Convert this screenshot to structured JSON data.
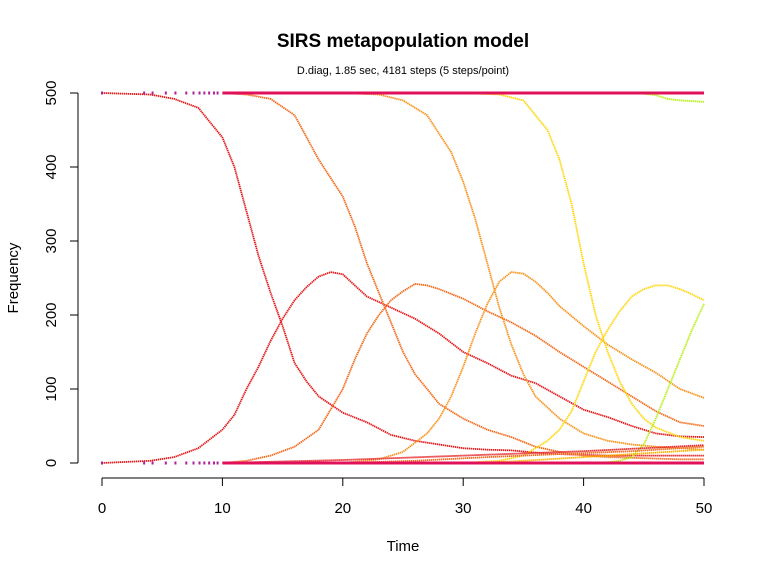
{
  "chart_data": {
    "type": "line",
    "title": "SIRS metapopulation model",
    "subtitle": "D.diag, 1.85 sec, 4181 steps (5 steps/point)",
    "xlabel": "Time",
    "ylabel": "Frequency",
    "xlim": [
      0,
      50
    ],
    "ylim": [
      0,
      500
    ],
    "x_ticks": [
      "0",
      "10",
      "20",
      "30",
      "40",
      "50"
    ],
    "y_ticks": [
      "0",
      "100",
      "200",
      "300",
      "400",
      "500"
    ],
    "grid": false,
    "legend": "none",
    "series": [
      {
        "role": "S",
        "color": "#e31a1c",
        "points": [
          [
            0,
            500
          ],
          [
            4,
            498
          ],
          [
            6,
            492
          ],
          [
            8,
            480
          ],
          [
            10,
            440
          ],
          [
            11,
            400
          ],
          [
            12,
            340
          ],
          [
            13,
            280
          ],
          [
            14,
            230
          ],
          [
            15,
            185
          ],
          [
            16,
            135
          ],
          [
            17,
            110
          ],
          [
            18,
            90
          ],
          [
            20,
            68
          ],
          [
            22,
            55
          ],
          [
            24,
            38
          ],
          [
            26,
            30
          ],
          [
            28,
            25
          ],
          [
            30,
            20
          ],
          [
            32,
            18
          ],
          [
            34,
            17
          ],
          [
            36,
            14
          ],
          [
            38,
            12
          ],
          [
            40,
            11
          ],
          [
            42,
            10
          ],
          [
            44,
            10
          ],
          [
            46,
            10
          ],
          [
            48,
            10
          ],
          [
            50,
            10
          ]
        ]
      },
      {
        "role": "I",
        "color": "#e31a1c",
        "points": [
          [
            0,
            0
          ],
          [
            4,
            3
          ],
          [
            6,
            8
          ],
          [
            8,
            20
          ],
          [
            10,
            45
          ],
          [
            11,
            65
          ],
          [
            12,
            100
          ],
          [
            13,
            130
          ],
          [
            14,
            165
          ],
          [
            15,
            195
          ],
          [
            16,
            220
          ],
          [
            17,
            238
          ],
          [
            18,
            252
          ],
          [
            19,
            258
          ],
          [
            20,
            255
          ],
          [
            21,
            240
          ],
          [
            22,
            225
          ],
          [
            24,
            210
          ],
          [
            26,
            195
          ],
          [
            28,
            175
          ],
          [
            30,
            150
          ],
          [
            32,
            135
          ],
          [
            34,
            118
          ],
          [
            36,
            108
          ],
          [
            38,
            90
          ],
          [
            40,
            72
          ],
          [
            42,
            62
          ],
          [
            44,
            50
          ],
          [
            46,
            40
          ],
          [
            48,
            36
          ],
          [
            50,
            35
          ]
        ]
      },
      {
        "role": "S",
        "color": "#f26b1d",
        "points": [
          [
            10,
            500
          ],
          [
            12,
            498
          ],
          [
            14,
            492
          ],
          [
            16,
            470
          ],
          [
            18,
            410
          ],
          [
            20,
            360
          ],
          [
            21,
            320
          ],
          [
            22,
            270
          ],
          [
            23,
            230
          ],
          [
            24,
            190
          ],
          [
            25,
            150
          ],
          [
            26,
            120
          ],
          [
            27,
            100
          ],
          [
            28,
            80
          ],
          [
            30,
            60
          ],
          [
            32,
            45
          ],
          [
            34,
            35
          ],
          [
            36,
            22
          ],
          [
            38,
            15
          ],
          [
            40,
            10
          ],
          [
            42,
            8
          ],
          [
            44,
            7
          ],
          [
            46,
            6
          ],
          [
            48,
            5
          ],
          [
            50,
            5
          ]
        ]
      },
      {
        "role": "I",
        "color": "#f26b1d",
        "points": [
          [
            10,
            0
          ],
          [
            12,
            3
          ],
          [
            14,
            10
          ],
          [
            16,
            22
          ],
          [
            18,
            45
          ],
          [
            20,
            100
          ],
          [
            21,
            140
          ],
          [
            22,
            175
          ],
          [
            23,
            200
          ],
          [
            24,
            220
          ],
          [
            25,
            232
          ],
          [
            26,
            242
          ],
          [
            27,
            240
          ],
          [
            28,
            235
          ],
          [
            30,
            222
          ],
          [
            32,
            205
          ],
          [
            34,
            190
          ],
          [
            36,
            172
          ],
          [
            38,
            150
          ],
          [
            40,
            130
          ],
          [
            42,
            110
          ],
          [
            44,
            90
          ],
          [
            46,
            70
          ],
          [
            48,
            55
          ],
          [
            50,
            50
          ]
        ]
      },
      {
        "role": "S",
        "color": "#f7931e",
        "points": [
          [
            20,
            500
          ],
          [
            23,
            498
          ],
          [
            25,
            490
          ],
          [
            27,
            470
          ],
          [
            29,
            420
          ],
          [
            30,
            380
          ],
          [
            31,
            330
          ],
          [
            32,
            270
          ],
          [
            33,
            210
          ],
          [
            34,
            160
          ],
          [
            35,
            120
          ],
          [
            36,
            90
          ],
          [
            38,
            60
          ],
          [
            40,
            40
          ],
          [
            42,
            30
          ],
          [
            44,
            25
          ],
          [
            46,
            22
          ],
          [
            48,
            20
          ],
          [
            50,
            18
          ]
        ]
      },
      {
        "role": "I",
        "color": "#f7931e",
        "points": [
          [
            20,
            0
          ],
          [
            23,
            5
          ],
          [
            25,
            15
          ],
          [
            27,
            40
          ],
          [
            28,
            60
          ],
          [
            29,
            90
          ],
          [
            30,
            130
          ],
          [
            31,
            175
          ],
          [
            32,
            215
          ],
          [
            33,
            245
          ],
          [
            34,
            258
          ],
          [
            35,
            256
          ],
          [
            36,
            245
          ],
          [
            37,
            230
          ],
          [
            38,
            212
          ],
          [
            40,
            185
          ],
          [
            42,
            160
          ],
          [
            44,
            140
          ],
          [
            46,
            122
          ],
          [
            48,
            100
          ],
          [
            50,
            88
          ]
        ]
      },
      {
        "role": "S",
        "color": "#ffd60a",
        "points": [
          [
            30,
            500
          ],
          [
            33,
            498
          ],
          [
            35,
            490
          ],
          [
            37,
            450
          ],
          [
            38,
            410
          ],
          [
            39,
            350
          ],
          [
            40,
            270
          ],
          [
            41,
            200
          ],
          [
            42,
            150
          ],
          [
            43,
            110
          ],
          [
            44,
            80
          ],
          [
            45,
            60
          ],
          [
            46,
            48
          ],
          [
            48,
            35
          ],
          [
            50,
            30
          ]
        ]
      },
      {
        "role": "I",
        "color": "#ffd60a",
        "points": [
          [
            30,
            0
          ],
          [
            33,
            3
          ],
          [
            35,
            10
          ],
          [
            37,
            30
          ],
          [
            38,
            45
          ],
          [
            39,
            70
          ],
          [
            40,
            110
          ],
          [
            41,
            150
          ],
          [
            42,
            180
          ],
          [
            43,
            205
          ],
          [
            44,
            225
          ],
          [
            45,
            235
          ],
          [
            46,
            240
          ],
          [
            47,
            240
          ],
          [
            48,
            235
          ],
          [
            49,
            228
          ],
          [
            50,
            220
          ]
        ]
      },
      {
        "role": "S",
        "color": "#b8f01a",
        "points": [
          [
            40,
            500
          ],
          [
            43,
            500
          ],
          [
            45,
            499
          ],
          [
            46,
            497
          ],
          [
            47,
            492
          ],
          [
            48,
            490
          ],
          [
            49,
            489
          ],
          [
            50,
            488
          ]
        ]
      },
      {
        "role": "I",
        "color": "#b8f01a",
        "points": [
          [
            40,
            0
          ],
          [
            42,
            1
          ],
          [
            43,
            3
          ],
          [
            44,
            8
          ],
          [
            45,
            25
          ],
          [
            46,
            60
          ],
          [
            47,
            100
          ],
          [
            48,
            140
          ],
          [
            49,
            180
          ],
          [
            50,
            215
          ]
        ]
      },
      {
        "role": "R",
        "color": "#ffb000",
        "points": [
          [
            30,
            0
          ],
          [
            34,
            2
          ],
          [
            38,
            6
          ],
          [
            42,
            10
          ],
          [
            46,
            14
          ],
          [
            50,
            18
          ]
        ]
      },
      {
        "role": "R",
        "color": "#f26b1d",
        "points": [
          [
            20,
            0
          ],
          [
            26,
            3
          ],
          [
            32,
            8
          ],
          [
            38,
            12
          ],
          [
            44,
            16
          ],
          [
            50,
            22
          ]
        ]
      },
      {
        "role": "R",
        "color": "#e31a1c",
        "points": [
          [
            10,
            0
          ],
          [
            20,
            4
          ],
          [
            30,
            10
          ],
          [
            40,
            16
          ],
          [
            50,
            24
          ]
        ]
      }
    ],
    "boundary_lines": {
      "color": "#e0105a",
      "y_values": [
        500,
        0
      ],
      "x_range": [
        10,
        50
      ],
      "dotted_start": [
        0,
        3.5,
        4.2,
        5.3,
        6.1,
        7.0,
        7.6,
        8.1,
        8.5,
        8.9,
        9.3,
        9.6
      ]
    }
  }
}
